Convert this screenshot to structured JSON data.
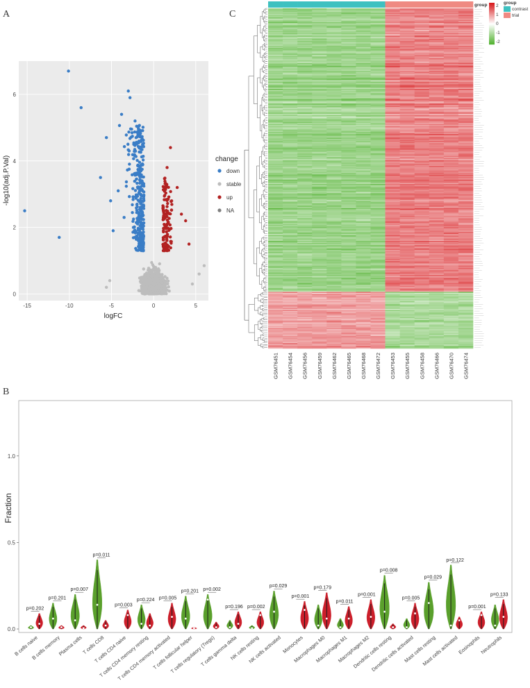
{
  "panels": {
    "a": "A",
    "b": "B",
    "c": "C"
  },
  "chart_data": [
    {
      "type": "scatter",
      "panel": "A",
      "title": "",
      "xlabel": "logFC",
      "ylabel": "-log10(adj.P.Val)",
      "xlim": [
        -16,
        6.5
      ],
      "ylim": [
        -0.2,
        7
      ],
      "xticks": [
        "-15",
        "-10",
        "-5",
        "0",
        "5"
      ],
      "xtick_values": [
        -15,
        -10,
        -5,
        0,
        5
      ],
      "yticks": [
        "0",
        "2",
        "4",
        "6"
      ],
      "ytick_values": [
        0,
        2,
        4,
        6
      ],
      "legend": {
        "title": "change",
        "position": "right",
        "entries": [
          {
            "label": "down",
            "color": "#3a7dc6"
          },
          {
            "label": "stable",
            "color": "#bdbdbd"
          },
          {
            "label": "up",
            "color": "#b22222"
          },
          {
            "label": "NA",
            "color": "#7f7f7f"
          }
        ]
      },
      "series": [
        {
          "name": "down",
          "points": [
            [
              -10.1,
              6.7
            ],
            [
              -8.6,
              5.6
            ],
            [
              -15.3,
              2.5
            ],
            [
              -11.2,
              1.7
            ],
            [
              -5.6,
              4.7
            ],
            [
              -3,
              6.1
            ],
            [
              -2.8,
              5.9
            ],
            [
              -3.8,
              5.4
            ],
            [
              -2.2,
              5.2
            ],
            [
              -6.3,
              3.5
            ],
            [
              -4.2,
              3.1
            ],
            [
              -5.1,
              2.8
            ],
            [
              -3.5,
              2.3
            ],
            [
              -2.4,
              2.0
            ],
            [
              -1.8,
              1.6
            ],
            [
              -4.8,
              1.9
            ],
            [
              -2.9,
              4.3
            ],
            [
              -1.5,
              3.7
            ]
          ],
          "cluster": {
            "count": 360,
            "x_range": [
              -4.0,
              -1.1
            ],
            "y_range": [
              1.3,
              5.1
            ]
          }
        },
        {
          "name": "up",
          "points": [
            [
              2.0,
              4.4
            ],
            [
              3.8,
              2.2
            ],
            [
              4.2,
              1.5
            ],
            [
              3.3,
              2.4
            ],
            [
              2.8,
              3.2
            ],
            [
              1.6,
              3.8
            ]
          ],
          "cluster": {
            "count": 130,
            "x_range": [
              1.0,
              3.2
            ],
            "y_range": [
              1.3,
              3.5
            ]
          }
        },
        {
          "name": "stable",
          "points": [
            [
              6.0,
              0.85
            ],
            [
              5.4,
              0.6
            ],
            [
              -5.2,
              0.4
            ],
            [
              -5.6,
              0.2
            ],
            [
              4.6,
              0.3
            ]
          ],
          "cluster": {
            "count": 950,
            "x_range": [
              -3.5,
              3.5
            ],
            "y_range": [
              0.0,
              1.3
            ]
          }
        }
      ]
    },
    {
      "type": "heatmap",
      "panel": "C",
      "columns": [
        "GSM76451",
        "GSM76454",
        "GSM76456",
        "GSM76459",
        "GSM76462",
        "GSM76465",
        "GSM76468",
        "GSM76472",
        "GSM76453",
        "GSM76455",
        "GSM76458",
        "GSM76466",
        "GSM76470",
        "GSM76474"
      ],
      "column_groups": [
        "contrast",
        "contrast",
        "contrast",
        "contrast",
        "contrast",
        "contrast",
        "contrast",
        "contrast",
        "trial",
        "trial",
        "trial",
        "trial",
        "trial",
        "trial"
      ],
      "group_colors": {
        "contrast": "#3ec1c0",
        "trial": "#ef8a82"
      },
      "group_legend": {
        "title": "group",
        "entries": [
          "contrast",
          "trial"
        ]
      },
      "color_scale": {
        "min": -2,
        "max": 2,
        "low": "#4caf2a",
        "mid": "#ffffff",
        "high": "#d7191c",
        "ticks": [
          "2",
          "1",
          "0",
          "-1",
          "-2"
        ],
        "title": "group"
      },
      "row_count": 300,
      "row_blocks": [
        {
          "rows": 250,
          "contrast_mean": -1.1,
          "trial_mean": 1.1
        },
        {
          "rows": 50,
          "contrast_mean": 0.9,
          "trial_mean": -1.0
        }
      ],
      "dendrogram": "row"
    },
    {
      "type": "violin",
      "panel": "B",
      "ylabel": "Fraction",
      "ylim": [
        0,
        1.32
      ],
      "yticks": [
        "0.0",
        "0.5",
        "1.0"
      ],
      "ytick_values": [
        0.0,
        0.5,
        1.0
      ],
      "groups": [
        "contrast",
        "trial"
      ],
      "group_colors": {
        "contrast": "#5aa02c",
        "trial": "#cc1f2b"
      },
      "categories": [
        "B cells naive",
        "B cells memory",
        "Plasma cells",
        "T cells CD8",
        "T cells CD4 naive",
        "T cells CD4 memory resting",
        "T cells CD4 memory activated",
        "T cells follicular helper",
        "T cells regulatory (Tregs)",
        "T cells gamma delta",
        "NK cells resting",
        "NK cells activated",
        "Monocytes",
        "Macrophages M0",
        "Macrophages M1",
        "Macrophages M2",
        "Dendritic cells resting",
        "Dendritic cells activated",
        "Mast cells resting",
        "Mast cells activated",
        "Eosinophils",
        "Neutrophils"
      ],
      "p_values": [
        "p=0.202",
        "p=0.201",
        "p=0.007",
        "p=0.011",
        "p=0.003",
        "p=0.224",
        "p=0.005",
        "p=0.201",
        "p=0.002",
        "p=0.196",
        "p=0.002",
        "p=0.029",
        "p=0.001",
        "p=0.179",
        "p=0.011",
        "p=0.001",
        "p=0.008",
        "p=0.005",
        "p=0.029",
        "p=0.122",
        "p=0.001",
        "p=0.133"
      ],
      "contrast_max": [
        0.02,
        0.15,
        0.2,
        0.4,
        0.0,
        0.14,
        0.0,
        0.19,
        0.2,
        0.05,
        0.02,
        0.22,
        0.0,
        0.14,
        0.06,
        0.0,
        0.31,
        0.06,
        0.27,
        0.37,
        0.0,
        0.14
      ],
      "trial_max": [
        0.09,
        0.02,
        0.02,
        0.05,
        0.11,
        0.09,
        0.15,
        0.01,
        0.04,
        0.1,
        0.1,
        0.0,
        0.16,
        0.21,
        0.13,
        0.17,
        0.03,
        0.15,
        0.0,
        0.07,
        0.1,
        0.17
      ],
      "contrast_median": [
        0.01,
        0.06,
        0.05,
        0.14,
        0.0,
        0.03,
        0.0,
        0.06,
        0.17,
        0.01,
        0.005,
        0.1,
        0.0,
        0.02,
        0.01,
        0.0,
        0.1,
        0.01,
        0.15,
        0.02,
        0.0,
        0.02
      ],
      "trial_median": [
        0.03,
        0.01,
        0.005,
        0.02,
        0.08,
        0.02,
        0.07,
        0.005,
        0.01,
        0.03,
        0.08,
        0.0,
        0.11,
        0.06,
        0.06,
        0.07,
        0.01,
        0.09,
        0.0,
        0.05,
        0.08,
        0.07
      ]
    }
  ]
}
